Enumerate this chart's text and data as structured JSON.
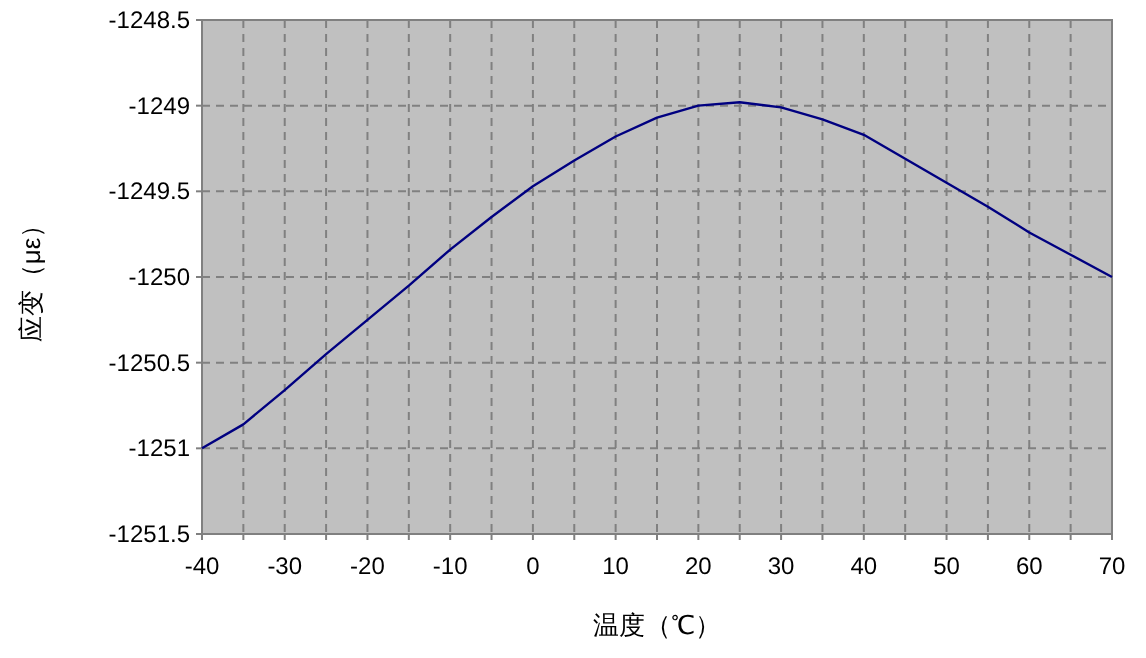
{
  "chart_data": {
    "type": "line",
    "xlabel": "温度（℃）",
    "ylabel": "应变（με）",
    "x": [
      -40,
      -35,
      -30,
      -25,
      -20,
      -15,
      -10,
      -5,
      0,
      5,
      10,
      15,
      20,
      25,
      30,
      35,
      40,
      45,
      50,
      55,
      60,
      65,
      70
    ],
    "series": [
      {
        "color": "#000080",
        "values": [
          -1251.0,
          -1250.86,
          -1250.66,
          -1250.45,
          -1250.25,
          -1250.05,
          -1249.84,
          -1249.65,
          -1249.47,
          -1249.32,
          -1249.18,
          -1249.07,
          -1249.0,
          -1248.98,
          -1249.01,
          -1249.08,
          -1249.17,
          -1249.31,
          -1249.45,
          -1249.59,
          -1249.74,
          -1249.87,
          -1250.0
        ]
      }
    ],
    "xlim": [
      -40,
      70
    ],
    "ylim": [
      -1251.5,
      -1248.5
    ],
    "xticks": [
      -40,
      {
        "value": -35,
        "label": null
      },
      -30,
      {
        "value": -25,
        "label": null
      },
      -20,
      {
        "value": -15,
        "label": null
      },
      -10,
      {
        "value": -5,
        "label": null
      },
      0,
      {
        "value": 5,
        "label": null
      },
      10,
      {
        "value": 15,
        "label": null
      },
      20,
      {
        "value": 25,
        "label": null
      },
      30,
      {
        "value": 35,
        "label": null
      },
      40,
      {
        "value": 45,
        "label": null
      },
      50,
      {
        "value": 55,
        "label": null
      },
      60,
      {
        "value": 65,
        "label": null
      },
      70
    ],
    "yticks": [
      -1251.5,
      -1251,
      -1250.5,
      -1250,
      -1249.5,
      -1249,
      -1248.5
    ],
    "grid": true
  }
}
